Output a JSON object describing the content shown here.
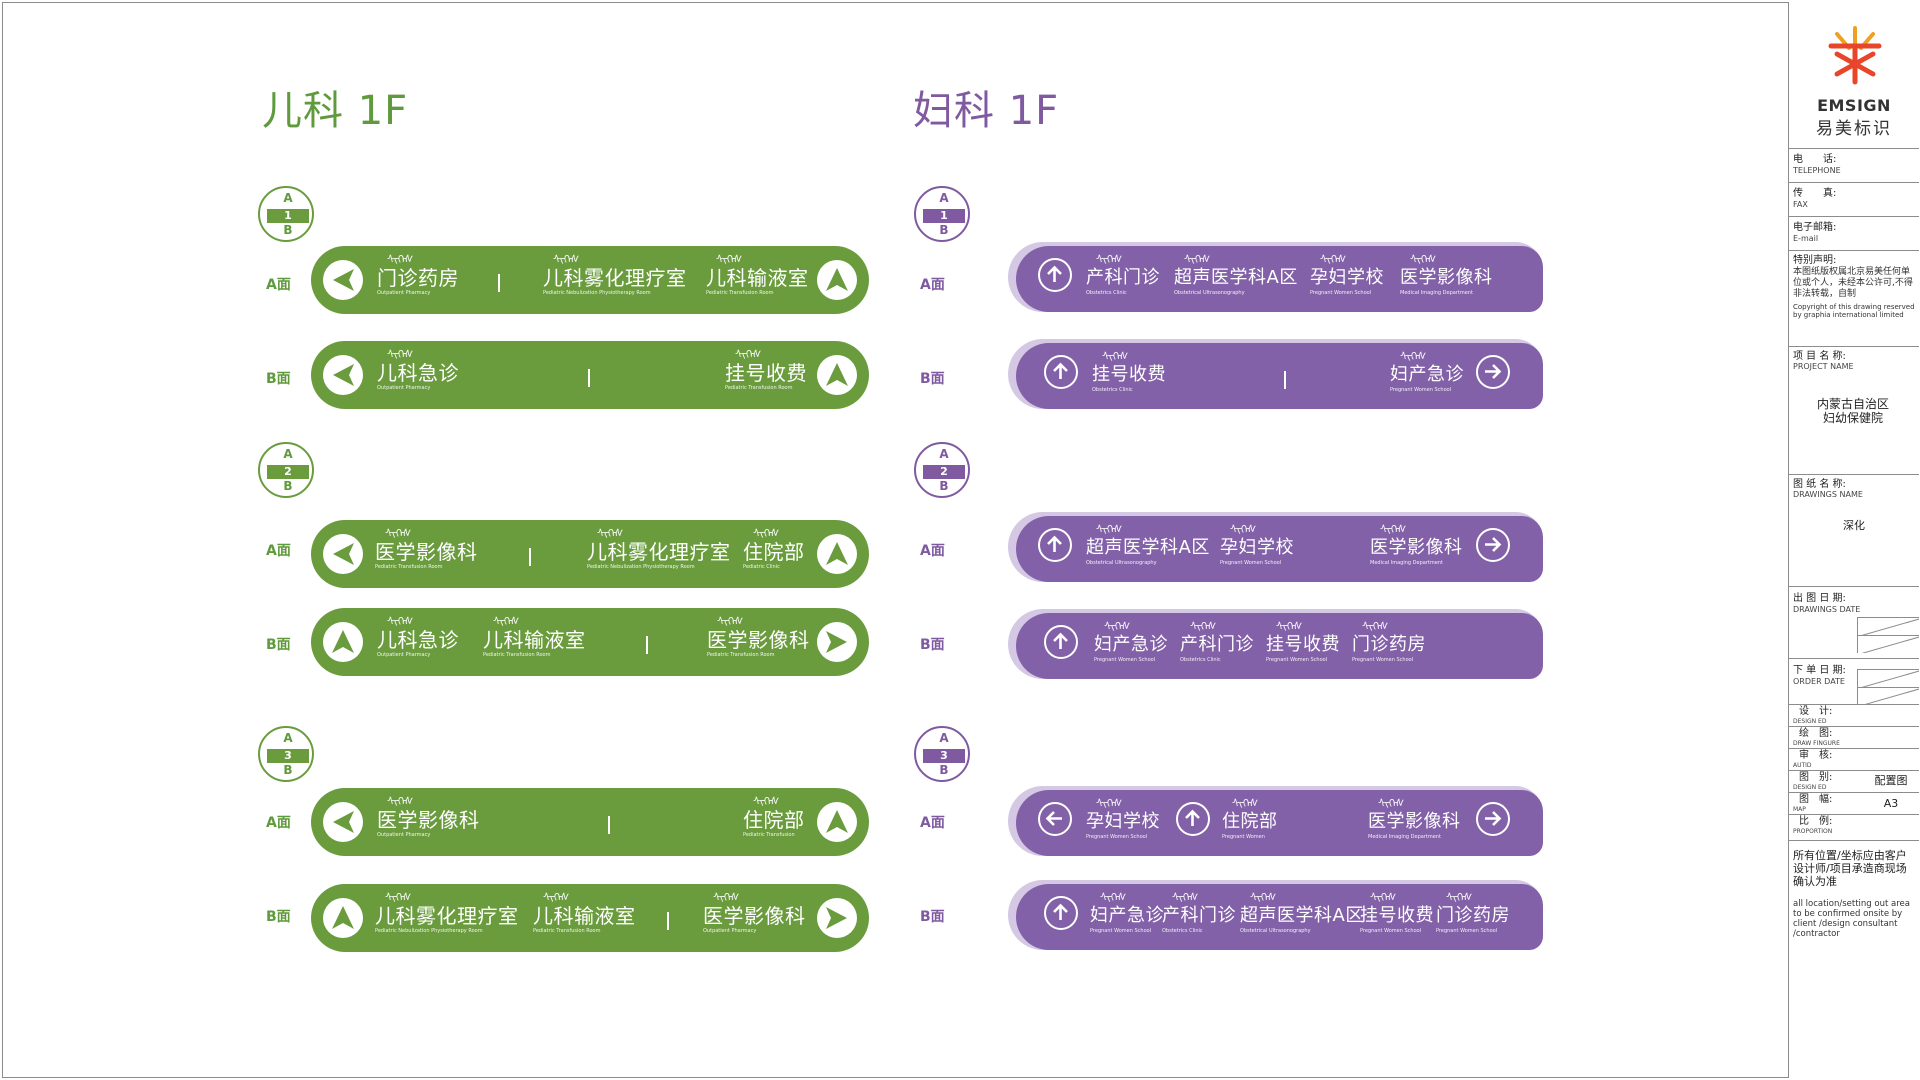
{
  "sections": {
    "pediatrics_title": "儿科 1F",
    "gynecology_title": "妇科 1F"
  },
  "face_labels": {
    "a": "A面",
    "b": "B面"
  },
  "badges": [
    {
      "top": "A",
      "mid": "1",
      "bot": "B"
    },
    {
      "top": "A",
      "mid": "2",
      "bot": "B"
    },
    {
      "top": "A",
      "mid": "3",
      "bot": "B"
    }
  ],
  "mongol_glyphs": "ᠰᠢᠭᠡᠰ",
  "green_signs": [
    {
      "dests": [
        {
          "cn": "门诊药房",
          "en": "Outpatient Pharmacy"
        },
        {
          "cn": "儿科雾化理疗室",
          "en": "Pediatric Nebulization Physiotherapy Room"
        },
        {
          "cn": "儿科输液室",
          "en": "Pediatric Transfusion Room"
        }
      ]
    },
    {
      "dests": [
        {
          "cn": "儿科急诊",
          "en": "Outpatient Pharmacy"
        },
        {
          "cn": "挂号收费",
          "en": "Pediatric Transfusion Room"
        }
      ]
    },
    {
      "dests": [
        {
          "cn": "医学影像科",
          "en": "Pediatric Transfusion Room"
        },
        {
          "cn": "儿科雾化理疗室",
          "en": "Pediatric Nebulization Physiotherapy Room"
        },
        {
          "cn": "住院部",
          "en": "Pediatric Clinic"
        }
      ]
    },
    {
      "dests": [
        {
          "cn": "儿科急诊",
          "en": "Outpatient Pharmacy"
        },
        {
          "cn": "儿科输液室",
          "en": "Pediatric Transfusion Room"
        },
        {
          "cn": "医学影像科",
          "en": "Pediatric Transfusion Room"
        }
      ]
    },
    {
      "dests": [
        {
          "cn": "医学影像科",
          "en": "Outpatient Pharmacy"
        },
        {
          "cn": "住院部",
          "en": "Pediatric Transfusion"
        }
      ]
    },
    {
      "dests": [
        {
          "cn": "儿科雾化理疗室",
          "en": "Pediatric Nebulization Physiotherapy Room"
        },
        {
          "cn": "儿科输液室",
          "en": "Pediatric Transfusion Room"
        },
        {
          "cn": "医学影像科",
          "en": "Outpatient Pharmacy"
        }
      ]
    }
  ],
  "purple_signs": [
    {
      "dests": [
        {
          "cn": "产科门诊",
          "en": "Obstetrics Clinic"
        },
        {
          "cn": "超声医学科A区",
          "en": "Obstetrical Ultrasonography"
        },
        {
          "cn": "孕妇学校",
          "en": "Pregnant Women School"
        },
        {
          "cn": "医学影像科",
          "en": "Medical Imaging Department"
        }
      ]
    },
    {
      "dests": [
        {
          "cn": "挂号收费",
          "en": "Obstetrics Clinic"
        },
        {
          "cn": "妇产急诊",
          "en": "Pregnant Women School"
        }
      ]
    },
    {
      "dests": [
        {
          "cn": "超声医学科A区",
          "en": "Obstetrical Ultrasonography"
        },
        {
          "cn": "孕妇学校",
          "en": "Pregnant Women School"
        },
        {
          "cn": "医学影像科",
          "en": "Medical Imaging Department"
        }
      ]
    },
    {
      "dests": [
        {
          "cn": "妇产急诊",
          "en": "Pregnant Women School"
        },
        {
          "cn": "产科门诊",
          "en": "Obstetrics Clinic"
        },
        {
          "cn": "挂号收费",
          "en": "Pregnant Women School"
        },
        {
          "cn": "门诊药房",
          "en": "Pregnant Women School"
        }
      ]
    },
    {
      "dests": [
        {
          "cn": "孕妇学校",
          "en": "Pregnant Women School"
        },
        {
          "cn": "住院部",
          "en": "Pregnant Women"
        },
        {
          "cn": "医学影像科",
          "en": "Medical Imaging Department"
        }
      ]
    },
    {
      "dests": [
        {
          "cn": "妇产急诊",
          "en": "Pregnant Women School"
        },
        {
          "cn": "产科门诊",
          "en": "Obstetrics Clinic"
        },
        {
          "cn": "超声医学科A区",
          "en": "Obstetrical Ultrasonography"
        },
        {
          "cn": "挂号收费",
          "en": "Pregnant Women School"
        },
        {
          "cn": "门诊药房",
          "en": "Pregnant Women School"
        }
      ]
    }
  ],
  "title_block": {
    "logo_en": "EMSIGN",
    "logo_cn": "易美标识",
    "telephone_cn": "电　　话:",
    "telephone_en": "TELEPHONE",
    "fax_cn": "传　　真:",
    "fax_en": "FAX",
    "email_cn": "电子邮箱:",
    "email_en": "E-mail",
    "notice_cn": "特别声明:",
    "notice_body": "本图纸版权属北京易美任何单位或个人，未经本公许可,不得非法转载，自制",
    "notice_en": "Copyright of this drawing reserved by graphia international limited",
    "project_cn": "项 目 名 称:",
    "project_en": "PROJECT NAME",
    "project_value": "内蒙古自治区妇幼保健院",
    "drawing_cn": "图 纸 名 称:",
    "drawing_en": "DRAWINGS NAME",
    "drawing_value": "深化",
    "drawings_date_cn": "出 图 日 期:",
    "drawings_date_en": "DRAWINGS DATE",
    "order_date_cn": "下 单 日 期:",
    "order_date_en": "ORDER DATE",
    "design_cn": "设　计:",
    "design_en": "DESIGN ED",
    "draw_cn": "绘　图:",
    "draw_en": "DRAW FINGURE",
    "audit_cn": "审　核:",
    "audit_en": "AUTID",
    "type_cn": "图　别:",
    "type_en": "DESIGN ED",
    "type_value": "配置图",
    "map_cn": "图　幅:",
    "map_en": "MAP",
    "map_value": "A3",
    "proportion_cn": "比　例:",
    "proportion_en": "PROPORTION",
    "footer_cn": "所有位置/坐标应由客户设计师/项目承造商现场确认为准",
    "footer_en": "all location/setting out area to be confirmed onsite by client /design consultant /contractor"
  },
  "colors": {
    "green": "#6a9c3e",
    "purple": "#8361a8",
    "purple_light": "#d4c8e4"
  },
  "icons": [
    "arrow-left-icon",
    "arrow-up-icon",
    "arrow-right-icon",
    "navigation-arrow-icon"
  ]
}
